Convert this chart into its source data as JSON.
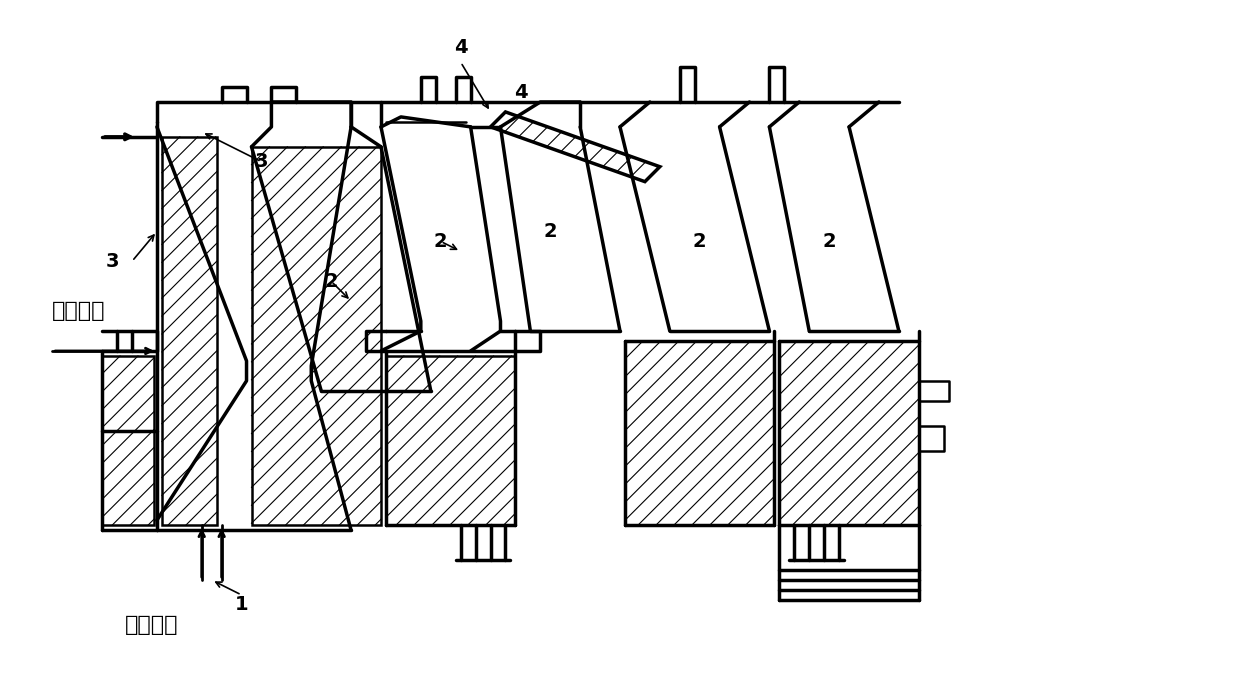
{
  "title": "",
  "bg_color": "#ffffff",
  "line_color": "#000000",
  "hatch_color": "#000000",
  "label_main_flow": "主流气体",
  "label_cool_flow": "冷却气流",
  "label_1": "1",
  "label_2": "2",
  "label_3": "3",
  "label_4": "4",
  "figsize": [
    12.4,
    6.81
  ],
  "dpi": 100
}
